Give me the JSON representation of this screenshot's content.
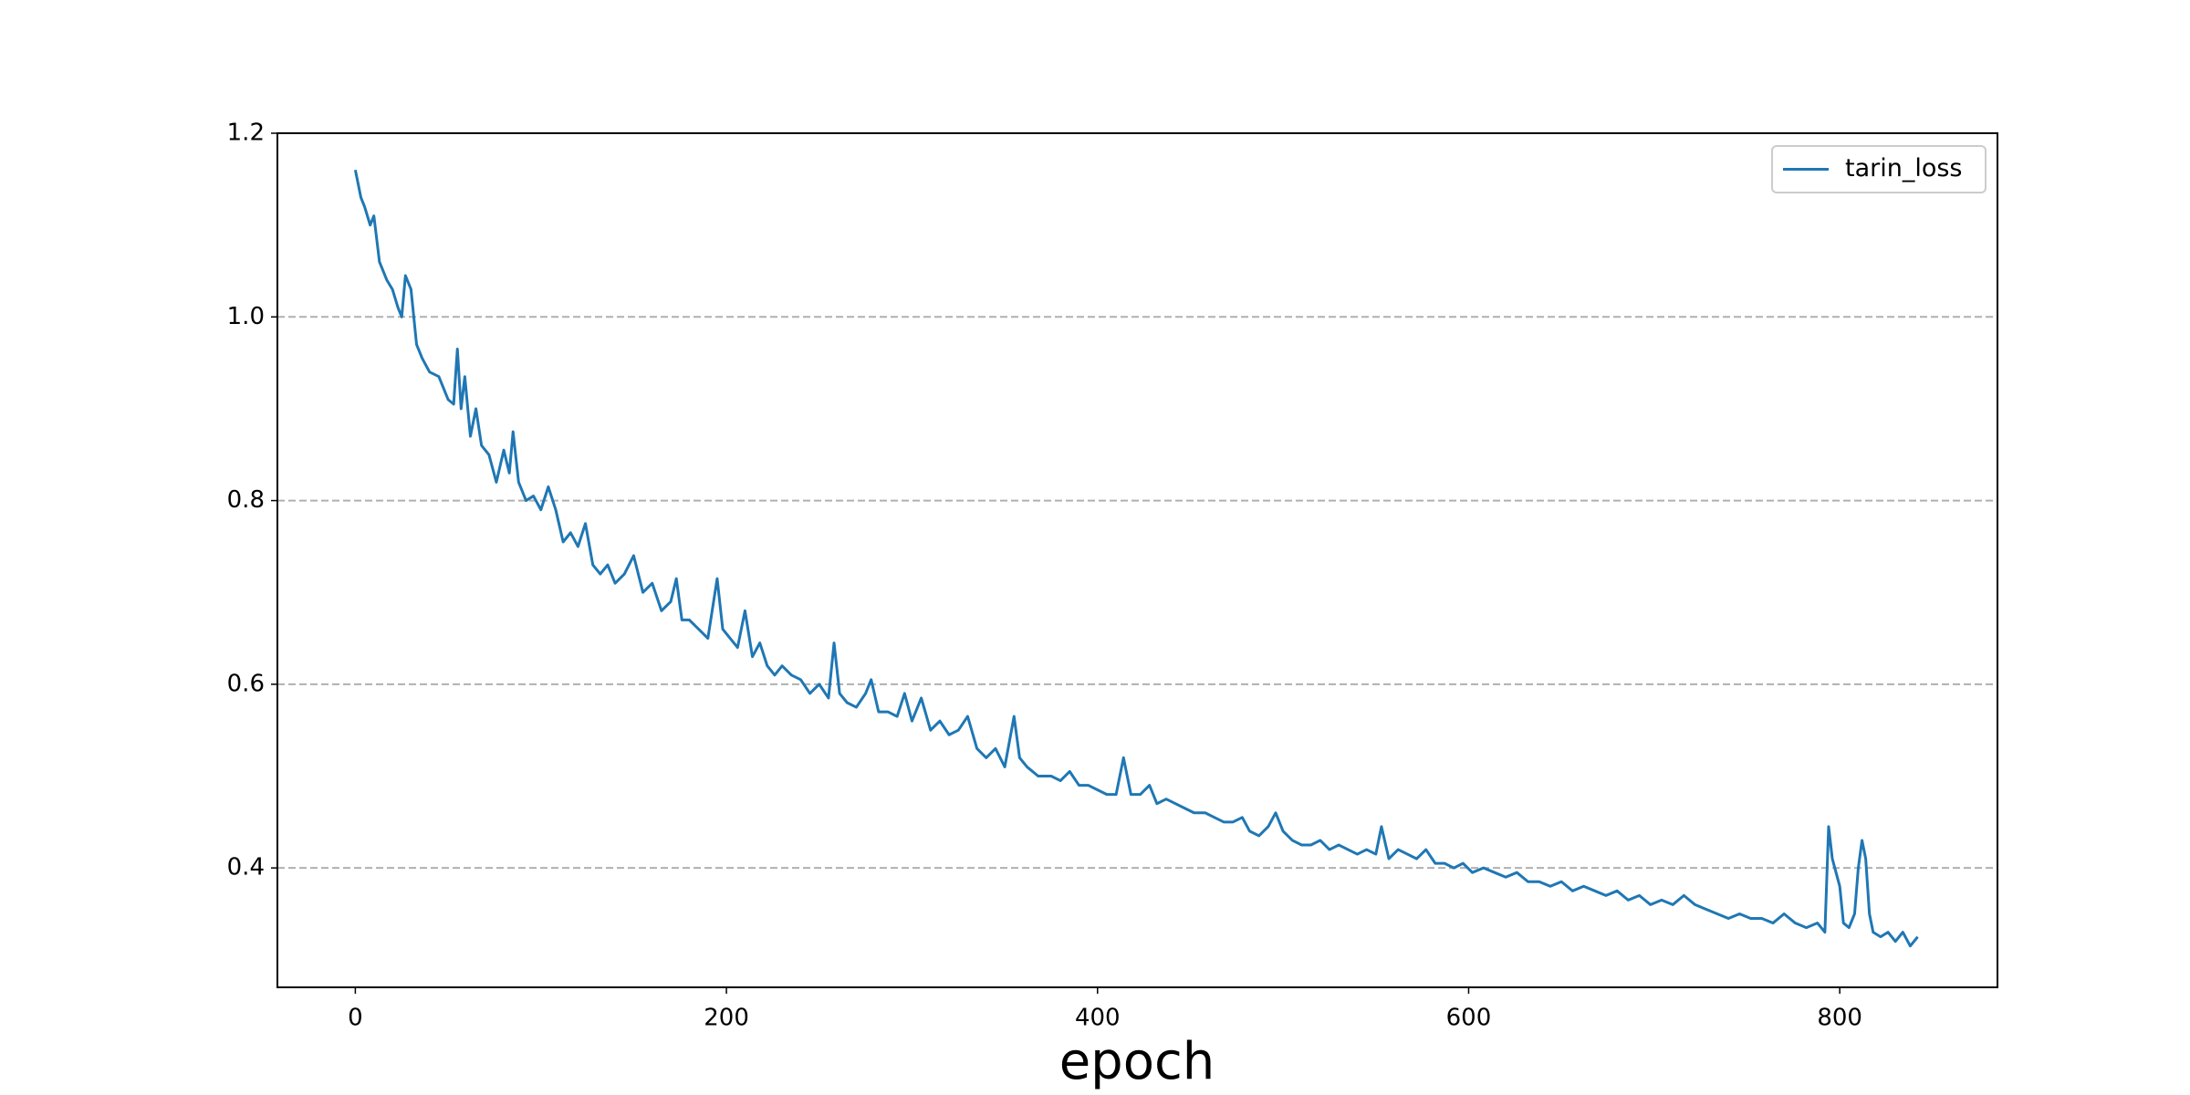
{
  "chart_data": {
    "type": "line",
    "xlabel": "epoch",
    "x": [
      0,
      3,
      5,
      8,
      10,
      13,
      17,
      20,
      23,
      25,
      27,
      30,
      33,
      36,
      40,
      45,
      50,
      53,
      55,
      57,
      59,
      62,
      65,
      68,
      72,
      76,
      80,
      83,
      85,
      88,
      92,
      96,
      100,
      104,
      108,
      112,
      116,
      120,
      124,
      128,
      132,
      136,
      140,
      145,
      150,
      155,
      160,
      165,
      170,
      173,
      176,
      180,
      185,
      190,
      195,
      198,
      202,
      206,
      210,
      214,
      218,
      222,
      226,
      230,
      235,
      240,
      245,
      250,
      255,
      258,
      261,
      265,
      270,
      275,
      278,
      282,
      287,
      292,
      296,
      300,
      305,
      310,
      315,
      320,
      325,
      330,
      335,
      340,
      345,
      350,
      355,
      358,
      362,
      368,
      375,
      380,
      385,
      390,
      395,
      400,
      405,
      410,
      414,
      418,
      423,
      428,
      432,
      437,
      442,
      447,
      452,
      458,
      463,
      468,
      473,
      478,
      482,
      487,
      492,
      496,
      500,
      505,
      510,
      515,
      520,
      525,
      530,
      535,
      540,
      545,
      550,
      553,
      557,
      562,
      567,
      572,
      577,
      582,
      587,
      592,
      597,
      602,
      608,
      614,
      620,
      626,
      632,
      638,
      644,
      650,
      656,
      662,
      668,
      674,
      680,
      686,
      692,
      698,
      704,
      710,
      716,
      722,
      728,
      734,
      740,
      746,
      752,
      758,
      764,
      770,
      776,
      782,
      788,
      792,
      794,
      796,
      798,
      800,
      802,
      805,
      808,
      810,
      812,
      814,
      816,
      818,
      822,
      826,
      830,
      834,
      838,
      842
    ],
    "series": [
      {
        "name": "tarin_loss",
        "color": "#1f77b4",
        "values": [
          1.16,
          1.13,
          1.12,
          1.1,
          1.11,
          1.06,
          1.04,
          1.03,
          1.01,
          1.0,
          1.045,
          1.03,
          0.97,
          0.955,
          0.94,
          0.935,
          0.91,
          0.905,
          0.965,
          0.9,
          0.935,
          0.87,
          0.9,
          0.86,
          0.85,
          0.82,
          0.855,
          0.83,
          0.875,
          0.82,
          0.8,
          0.805,
          0.79,
          0.815,
          0.79,
          0.755,
          0.765,
          0.75,
          0.775,
          0.73,
          0.72,
          0.73,
          0.71,
          0.72,
          0.74,
          0.7,
          0.71,
          0.68,
          0.69,
          0.715,
          0.67,
          0.67,
          0.66,
          0.65,
          0.715,
          0.66,
          0.65,
          0.64,
          0.68,
          0.63,
          0.645,
          0.62,
          0.61,
          0.62,
          0.61,
          0.605,
          0.59,
          0.6,
          0.585,
          0.645,
          0.59,
          0.58,
          0.575,
          0.59,
          0.605,
          0.57,
          0.57,
          0.565,
          0.59,
          0.56,
          0.585,
          0.55,
          0.56,
          0.545,
          0.55,
          0.565,
          0.53,
          0.52,
          0.53,
          0.51,
          0.565,
          0.52,
          0.51,
          0.5,
          0.5,
          0.495,
          0.505,
          0.49,
          0.49,
          0.485,
          0.48,
          0.48,
          0.52,
          0.48,
          0.48,
          0.49,
          0.47,
          0.475,
          0.47,
          0.465,
          0.46,
          0.46,
          0.455,
          0.45,
          0.45,
          0.455,
          0.44,
          0.435,
          0.445,
          0.46,
          0.44,
          0.43,
          0.425,
          0.425,
          0.43,
          0.42,
          0.425,
          0.42,
          0.415,
          0.42,
          0.415,
          0.445,
          0.41,
          0.42,
          0.415,
          0.41,
          0.42,
          0.405,
          0.405,
          0.4,
          0.405,
          0.395,
          0.4,
          0.395,
          0.39,
          0.395,
          0.385,
          0.385,
          0.38,
          0.385,
          0.375,
          0.38,
          0.375,
          0.37,
          0.375,
          0.365,
          0.37,
          0.36,
          0.365,
          0.36,
          0.37,
          0.36,
          0.355,
          0.35,
          0.345,
          0.35,
          0.345,
          0.345,
          0.34,
          0.35,
          0.34,
          0.335,
          0.34,
          0.33,
          0.445,
          0.41,
          0.395,
          0.38,
          0.34,
          0.335,
          0.35,
          0.4,
          0.43,
          0.41,
          0.35,
          0.33,
          0.325,
          0.33,
          0.32,
          0.33,
          0.315,
          0.325
        ]
      }
    ],
    "xlim": [
      -42,
      885
    ],
    "ylim": [
      0.27,
      1.2
    ],
    "xticks": [
      0,
      200,
      400,
      600,
      800
    ],
    "yticks": [
      0.4,
      0.6,
      0.8,
      {
        "value": 1,
        "label": "1.0"
      },
      1.2
    ],
    "grid": "y",
    "legend": "upper right"
  }
}
